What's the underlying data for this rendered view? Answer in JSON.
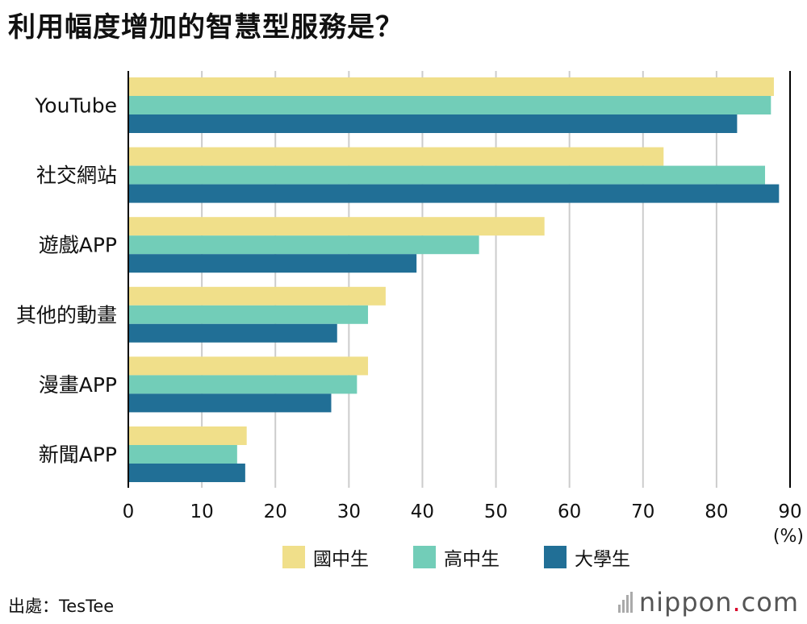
{
  "title": "利用幅度增加的智慧型服務是？",
  "source": "出處：TesTee",
  "logo": {
    "name": "nippon",
    "dot": ".",
    "tld": "com"
  },
  "colors": {
    "junior": "#f0df8a",
    "senior": "#72cdb8",
    "university": "#216f96",
    "grid": "#cccccc",
    "axis": "#000000"
  },
  "chart_data": {
    "type": "bar",
    "orientation": "horizontal",
    "categories": [
      "YouTube",
      "社交網站",
      "遊戲APP",
      "其他的動畫",
      "漫畫APP",
      "新聞APP"
    ],
    "series": [
      {
        "name": "國中生",
        "values": [
          87.8,
          72.8,
          56.6,
          35.0,
          32.6,
          16.1
        ]
      },
      {
        "name": "高中生",
        "values": [
          87.4,
          86.6,
          47.7,
          32.6,
          31.1,
          14.8
        ]
      },
      {
        "name": "大學生",
        "values": [
          82.8,
          88.5,
          39.2,
          28.4,
          27.6,
          15.9
        ]
      }
    ],
    "xlim": [
      0,
      90
    ],
    "xticks": [
      "0",
      "10",
      "20",
      "30",
      "40",
      "50",
      "60",
      "70",
      "80",
      "90"
    ],
    "unit_label": "(%)",
    "grid": true,
    "legend_position": "bottom"
  }
}
